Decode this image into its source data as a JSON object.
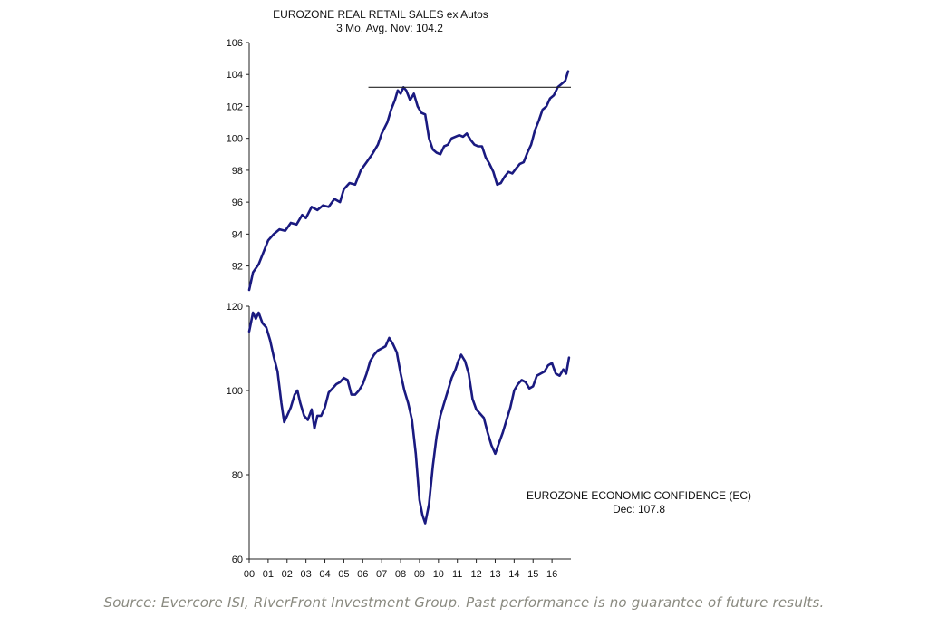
{
  "colors": {
    "line": "#1a1a80",
    "axis": "#222222",
    "reference_line": "#222222",
    "source_text": "#8a8a80"
  },
  "chart_data": [
    {
      "type": "line",
      "title": "EUROZONE REAL RETAIL SALES  ex Autos",
      "subtitle": "3 Mo. Avg.   Nov: 104.2",
      "ylim": [
        90.5,
        106
      ],
      "yticks": [
        92,
        94,
        96,
        98,
        100,
        102,
        104,
        106
      ],
      "reference_line": {
        "y": 103.2,
        "x_start": 2006.3,
        "x_end": 2017.0
      },
      "series": [
        {
          "values": [
            [
              2000.0,
              90.5
            ],
            [
              2000.2,
              91.6
            ],
            [
              2000.5,
              92.1
            ],
            [
              2000.8,
              93.0
            ],
            [
              2001.0,
              93.6
            ],
            [
              2001.3,
              94.0
            ],
            [
              2001.6,
              94.3
            ],
            [
              2001.9,
              94.2
            ],
            [
              2002.2,
              94.7
            ],
            [
              2002.5,
              94.6
            ],
            [
              2002.8,
              95.2
            ],
            [
              2003.0,
              95.0
            ],
            [
              2003.3,
              95.7
            ],
            [
              2003.6,
              95.5
            ],
            [
              2003.9,
              95.8
            ],
            [
              2004.2,
              95.7
            ],
            [
              2004.5,
              96.2
            ],
            [
              2004.8,
              96.0
            ],
            [
              2005.0,
              96.8
            ],
            [
              2005.3,
              97.2
            ],
            [
              2005.6,
              97.1
            ],
            [
              2005.9,
              98.0
            ],
            [
              2006.2,
              98.5
            ],
            [
              2006.5,
              99.0
            ],
            [
              2006.8,
              99.6
            ],
            [
              2007.0,
              100.3
            ],
            [
              2007.3,
              101.0
            ],
            [
              2007.5,
              101.8
            ],
            [
              2007.7,
              102.4
            ],
            [
              2007.85,
              103.0
            ],
            [
              2008.0,
              102.8
            ],
            [
              2008.15,
              103.2
            ],
            [
              2008.3,
              103.0
            ],
            [
              2008.5,
              102.4
            ],
            [
              2008.7,
              102.8
            ],
            [
              2008.9,
              102.0
            ],
            [
              2009.1,
              101.6
            ],
            [
              2009.3,
              101.5
            ],
            [
              2009.5,
              100.0
            ],
            [
              2009.7,
              99.3
            ],
            [
              2009.9,
              99.1
            ],
            [
              2010.1,
              99.0
            ],
            [
              2010.3,
              99.5
            ],
            [
              2010.5,
              99.6
            ],
            [
              2010.7,
              100.0
            ],
            [
              2010.9,
              100.1
            ],
            [
              2011.1,
              100.2
            ],
            [
              2011.3,
              100.1
            ],
            [
              2011.5,
              100.3
            ],
            [
              2011.7,
              99.9
            ],
            [
              2011.9,
              99.6
            ],
            [
              2012.1,
              99.5
            ],
            [
              2012.3,
              99.5
            ],
            [
              2012.5,
              98.8
            ],
            [
              2012.7,
              98.4
            ],
            [
              2012.9,
              97.9
            ],
            [
              2013.1,
              97.1
            ],
            [
              2013.3,
              97.2
            ],
            [
              2013.5,
              97.6
            ],
            [
              2013.7,
              97.9
            ],
            [
              2013.9,
              97.8
            ],
            [
              2014.1,
              98.1
            ],
            [
              2014.3,
              98.4
            ],
            [
              2014.5,
              98.5
            ],
            [
              2014.7,
              99.1
            ],
            [
              2014.9,
              99.6
            ],
            [
              2015.1,
              100.5
            ],
            [
              2015.3,
              101.1
            ],
            [
              2015.5,
              101.8
            ],
            [
              2015.7,
              102.0
            ],
            [
              2015.9,
              102.5
            ],
            [
              2016.1,
              102.7
            ],
            [
              2016.3,
              103.2
            ],
            [
              2016.5,
              103.4
            ],
            [
              2016.7,
              103.6
            ],
            [
              2016.85,
              104.2
            ]
          ]
        }
      ]
    },
    {
      "type": "line",
      "title": "EUROZONE ECONOMIC CONFIDENCE  (EC)",
      "subtitle": "Dec: 107.8",
      "ylim": [
        60,
        120
      ],
      "yticks": [
        60,
        80,
        100,
        120
      ],
      "x_tick_labels": [
        "00",
        "01",
        "02",
        "03",
        "04",
        "05",
        "06",
        "07",
        "08",
        "09",
        "10",
        "11",
        "12",
        "13",
        "14",
        "15",
        "16"
      ],
      "xlim": [
        2000,
        2017
      ],
      "series": [
        {
          "values": [
            [
              2000.0,
              114.0
            ],
            [
              2000.2,
              118.5
            ],
            [
              2000.35,
              117.0
            ],
            [
              2000.5,
              118.5
            ],
            [
              2000.7,
              116.0
            ],
            [
              2000.9,
              115.0
            ],
            [
              2001.1,
              112.0
            ],
            [
              2001.3,
              108.0
            ],
            [
              2001.5,
              104.5
            ],
            [
              2001.7,
              97.0
            ],
            [
              2001.85,
              92.5
            ],
            [
              2002.0,
              94.0
            ],
            [
              2002.2,
              96.0
            ],
            [
              2002.4,
              99.0
            ],
            [
              2002.55,
              100.0
            ],
            [
              2002.7,
              97.0
            ],
            [
              2002.9,
              94.0
            ],
            [
              2003.1,
              93.0
            ],
            [
              2003.3,
              95.5
            ],
            [
              2003.45,
              91.0
            ],
            [
              2003.6,
              94.0
            ],
            [
              2003.8,
              94.0
            ],
            [
              2004.0,
              96.0
            ],
            [
              2004.2,
              99.5
            ],
            [
              2004.4,
              100.5
            ],
            [
              2004.6,
              101.5
            ],
            [
              2004.8,
              102.0
            ],
            [
              2005.0,
              103.0
            ],
            [
              2005.2,
              102.5
            ],
            [
              2005.4,
              99.0
            ],
            [
              2005.6,
              99.0
            ],
            [
              2005.8,
              100.0
            ],
            [
              2006.0,
              101.5
            ],
            [
              2006.2,
              104.0
            ],
            [
              2006.4,
              107.0
            ],
            [
              2006.6,
              108.5
            ],
            [
              2006.8,
              109.5
            ],
            [
              2007.0,
              110.0
            ],
            [
              2007.2,
              110.5
            ],
            [
              2007.4,
              112.5
            ],
            [
              2007.6,
              111.0
            ],
            [
              2007.8,
              109.0
            ],
            [
              2008.0,
              104.0
            ],
            [
              2008.2,
              100.0
            ],
            [
              2008.4,
              97.0
            ],
            [
              2008.6,
              93.0
            ],
            [
              2008.8,
              85.0
            ],
            [
              2009.0,
              74.0
            ],
            [
              2009.15,
              70.5
            ],
            [
              2009.3,
              68.5
            ],
            [
              2009.5,
              73.0
            ],
            [
              2009.7,
              82.0
            ],
            [
              2009.9,
              89.0
            ],
            [
              2010.1,
              94.0
            ],
            [
              2010.3,
              97.0
            ],
            [
              2010.5,
              100.0
            ],
            [
              2010.7,
              103.0
            ],
            [
              2010.9,
              105.0
            ],
            [
              2011.05,
              107.0
            ],
            [
              2011.2,
              108.5
            ],
            [
              2011.4,
              107.0
            ],
            [
              2011.6,
              104.0
            ],
            [
              2011.8,
              98.0
            ],
            [
              2012.0,
              95.5
            ],
            [
              2012.2,
              94.5
            ],
            [
              2012.4,
              93.5
            ],
            [
              2012.6,
              90.0
            ],
            [
              2012.8,
              87.0
            ],
            [
              2013.0,
              85.0
            ],
            [
              2013.2,
              87.5
            ],
            [
              2013.4,
              90.0
            ],
            [
              2013.6,
              93.0
            ],
            [
              2013.8,
              96.0
            ],
            [
              2014.0,
              100.0
            ],
            [
              2014.2,
              101.5
            ],
            [
              2014.4,
              102.5
            ],
            [
              2014.6,
              102.0
            ],
            [
              2014.8,
              100.5
            ],
            [
              2015.0,
              101.0
            ],
            [
              2015.2,
              103.5
            ],
            [
              2015.4,
              104.0
            ],
            [
              2015.6,
              104.5
            ],
            [
              2015.8,
              106.0
            ],
            [
              2016.0,
              106.5
            ],
            [
              2016.2,
              104.0
            ],
            [
              2016.4,
              103.5
            ],
            [
              2016.6,
              105.0
            ],
            [
              2016.75,
              104.0
            ],
            [
              2016.9,
              107.8
            ]
          ]
        }
      ]
    }
  ],
  "source_note": "Source: Evercore ISI, RIverFront Investment Group. Past performance is no guarantee of future results."
}
